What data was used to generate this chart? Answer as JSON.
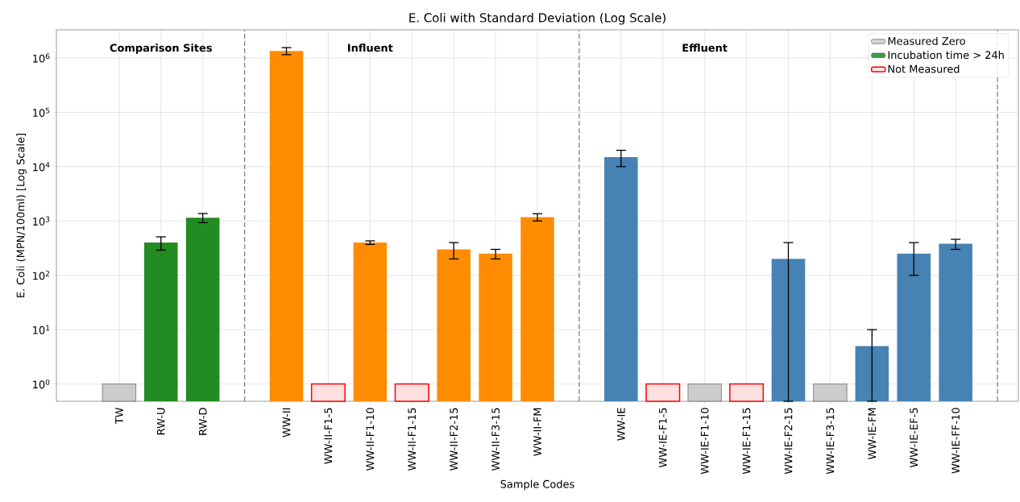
{
  "chart_data": {
    "type": "bar",
    "title": "E. Coli with Standard Deviation (Log Scale)",
    "xlabel": "Sample Codes",
    "ylabel": "E. Coli (MPN/100ml) [Log Scale]",
    "categories": [
      "TW",
      "RW-U",
      "RW-D",
      null,
      "WW-II",
      "WW-II-F1-5",
      "WW-II-F1-10",
      "WW-II-F1-15",
      "WW-II-F2-15",
      "WW-II-F3-15",
      "WW-II-FM",
      null,
      "WW-IE",
      "WW-IE-F1-5",
      "WW-IE-F1-10",
      "WW-IE-F1-15",
      "WW-IE-F2-15",
      "WW-IE-F3-15",
      "WW-IE-FM",
      "WW-IE-EF-5",
      "WW-IE-FF-10"
    ],
    "series": [
      {
        "name": "Measured Zero",
        "color": "#cccccc",
        "values": [
          1,
          null,
          null,
          null,
          null,
          null,
          null,
          null,
          null,
          null,
          null,
          null,
          null,
          null,
          1,
          null,
          null,
          1,
          null,
          null,
          null
        ]
      },
      {
        "name": "Incubation time > 24h",
        "color": "#228b22",
        "values": [
          null,
          400,
          1150,
          null,
          null,
          null,
          null,
          null,
          null,
          null,
          null,
          null,
          null,
          null,
          null,
          null,
          null,
          null,
          null,
          null,
          null
        ],
        "errors": [
          null,
          110,
          220,
          null,
          null,
          null,
          null,
          null,
          null,
          null,
          null,
          null,
          null,
          null,
          null,
          null,
          null,
          null,
          null,
          null,
          null
        ]
      },
      {
        "name": "Not Measured",
        "color": "#ff0000",
        "values": [
          null,
          null,
          null,
          null,
          null,
          1,
          null,
          1,
          null,
          null,
          null,
          null,
          null,
          1,
          null,
          1,
          null,
          null,
          null,
          null,
          null
        ]
      },
      {
        "color": "#ff8c00",
        "values": [
          null,
          null,
          null,
          null,
          1350000,
          null,
          400,
          null,
          300,
          250,
          1180,
          null,
          null,
          null,
          null,
          null,
          null,
          null,
          null,
          null,
          null
        ],
        "errors": [
          null,
          null,
          null,
          null,
          200000,
          null,
          30,
          null,
          100,
          50,
          180,
          null,
          null,
          null,
          null,
          null,
          null,
          null,
          null,
          null,
          null
        ]
      },
      {
        "color": "#4682b4",
        "values": [
          null,
          null,
          null,
          null,
          null,
          null,
          null,
          null,
          null,
          null,
          null,
          null,
          15000,
          null,
          null,
          null,
          200,
          null,
          5,
          250,
          380
        ],
        "errors": [
          null,
          null,
          null,
          null,
          null,
          null,
          null,
          null,
          null,
          null,
          null,
          null,
          5000,
          null,
          null,
          null,
          [
            0.48,
            400
          ],
          null,
          [
            0.48,
            10
          ],
          150,
          80
        ]
      }
    ],
    "ylim": [
      0.48,
      3300000
    ],
    "log": true,
    "yticks": [
      {
        "value": 1,
        "label": "10$^{0}$"
      },
      {
        "value": 10,
        "label": "10$^{1}$"
      },
      {
        "value": 100,
        "label": "10$^{2}$"
      },
      {
        "value": 1000,
        "label": "10$^{3}$"
      },
      {
        "value": 10000,
        "label": "10$^{4}$"
      },
      {
        "value": 100000,
        "label": "10$^{5}$"
      },
      {
        "value": 1000000,
        "label": "10$^{6}$"
      }
    ],
    "grid": true,
    "legend": "top right",
    "annotations": [
      "Comparison Sites",
      "Influent",
      "Effluent"
    ]
  }
}
